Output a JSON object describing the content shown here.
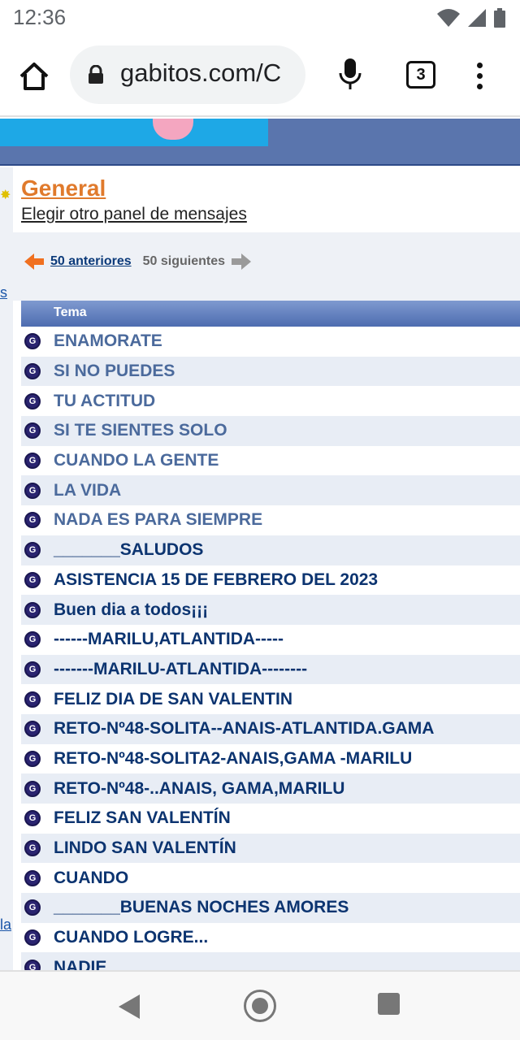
{
  "status_bar": {
    "time": "12:36"
  },
  "browser": {
    "url": "gabitos.com/C",
    "tab_count": "3"
  },
  "forum": {
    "title": "General",
    "subtitle": "Elegir otro panel de mensajes",
    "pager": {
      "prev": "50 anteriores",
      "next": "50 siguientes"
    },
    "column_header": "Tema",
    "gutter_links": [
      "s",
      "la"
    ],
    "topics": [
      {
        "title": "ENAMORATE",
        "visited": true
      },
      {
        "title": "SI NO PUEDES",
        "visited": true
      },
      {
        "title": "TU ACTITUD",
        "visited": true
      },
      {
        "title": "SI TE SIENTES SOLO",
        "visited": true
      },
      {
        "title": "CUANDO LA GENTE",
        "visited": true
      },
      {
        "title": "LA VIDA",
        "visited": true
      },
      {
        "title": "NADA ES PARA SIEMPRE",
        "visited": true
      },
      {
        "title": "_______SALUDOS",
        "visited": false
      },
      {
        "title": "ASISTENCIA 15 DE FEBRERO DEL 2023",
        "visited": false
      },
      {
        "title": "Buen dia a todos¡¡¡",
        "visited": false
      },
      {
        "title": "------MARILU,ATLANTIDA-----",
        "visited": false
      },
      {
        "title": "-------MARILU-ATLANTIDA--------",
        "visited": false
      },
      {
        "title": "FELIZ DIA DE SAN VALENTIN",
        "visited": false
      },
      {
        "title": "RETO-Nº48-SOLITA--ANAIS-ATLANTIDA.GAMA",
        "visited": false
      },
      {
        "title": "RETO-Nº48-SOLITA2-ANAIS,GAMA -MARILU",
        "visited": false
      },
      {
        "title": "RETO-Nº48-..ANAIS, GAMA,MARILU",
        "visited": false
      },
      {
        "title": "FELIZ SAN VALENTÍN",
        "visited": false
      },
      {
        "title": "LINDO SAN VALENTÍN",
        "visited": false
      },
      {
        "title": "CUANDO",
        "visited": false
      },
      {
        "title": "_______BUENAS NOCHES AMORES",
        "visited": false
      },
      {
        "title": "CUANDO LOGRE...",
        "visited": false
      },
      {
        "title": "NADIE",
        "visited": false
      }
    ],
    "icon_letter": "G"
  },
  "colors": {
    "accent_orange": "#e07a2c",
    "visited_link": "#4b6a9c",
    "unvisited_link": "#0c3470",
    "row_alt": "#e8edf5",
    "header_blue": "#4d6cb0"
  }
}
